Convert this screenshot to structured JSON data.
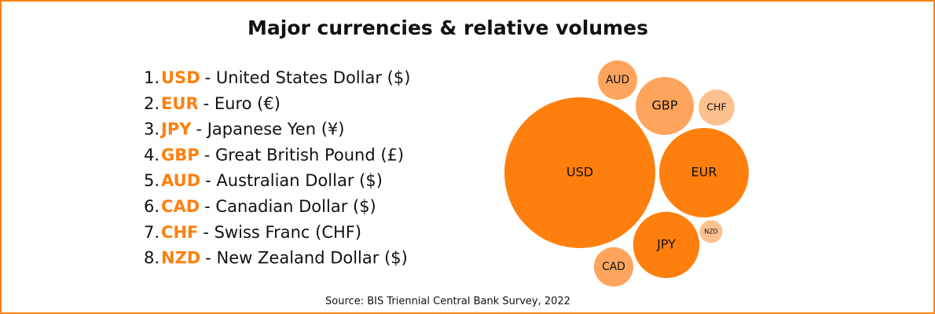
{
  "chart_data": {
    "type": "bubble",
    "title": "Major currencies & relative volumes",
    "categories": [
      "USD",
      "EUR",
      "JPY",
      "GBP",
      "AUD",
      "CAD",
      "CHF",
      "NZD"
    ],
    "values": [
      88,
      31,
      17,
      13,
      6,
      6,
      5,
      2
    ],
    "colors": [
      "#ff7f0e",
      "#ff7f0e",
      "#ff7f0e",
      "#ffa45c",
      "#ffa45c",
      "#ffa45c",
      "#fdc08f",
      "#fdc08f"
    ]
  },
  "list": [
    {
      "number": "1.",
      "description": "- United States Dollar ($)"
    },
    {
      "number": "2.",
      "description": "- Euro (€)"
    },
    {
      "number": "3.",
      "description": "- Japanese Yen (¥)"
    },
    {
      "number": "4.",
      "description": "- Great British Pound (£)"
    },
    {
      "number": "5.",
      "description": "- Australian Dollar ($)"
    },
    {
      "number": "6.",
      "description": "- Canadian Dollar ($)"
    },
    {
      "number": "7.",
      "description": "- Swiss Franc (CHF)"
    },
    {
      "number": "8.",
      "description": "- New Zealand Dollar ($)"
    }
  ],
  "source": "Source: BIS Triennial Central Bank Survey, 2022"
}
